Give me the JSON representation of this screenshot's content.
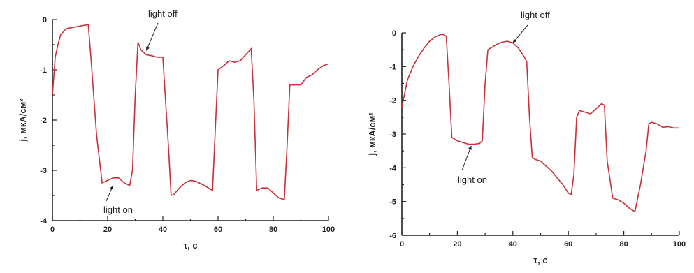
{
  "chart_data": [
    {
      "type": "line",
      "xlabel": "τ, c",
      "ylabel": "j, мкА/см²",
      "xlim": [
        0,
        100
      ],
      "ylim": [
        -4,
        0
      ],
      "xticks": [
        "0",
        "20",
        "40",
        "60",
        "80",
        "100"
      ],
      "yticks": [
        "0",
        "-1",
        "-2",
        "-3",
        "-4"
      ],
      "grid": false,
      "series": [
        {
          "color": "#c8303a",
          "x": [
            0,
            1,
            2,
            3,
            5,
            8,
            11,
            13,
            14,
            16,
            18,
            20,
            22,
            24,
            26,
            28,
            29,
            30,
            31,
            32,
            34,
            36,
            38,
            40,
            42,
            43,
            44,
            46,
            48,
            50,
            52,
            55,
            58,
            59,
            60,
            62,
            64,
            66,
            68,
            70,
            72,
            73,
            74,
            76,
            78,
            80,
            82,
            84,
            85,
            86,
            88,
            90,
            92,
            94,
            96,
            98,
            100
          ],
          "y": [
            -1.5,
            -0.75,
            -0.5,
            -0.3,
            -0.18,
            -0.15,
            -0.12,
            -0.1,
            -0.8,
            -2.3,
            -3.25,
            -3.2,
            -3.15,
            -3.15,
            -3.25,
            -3.3,
            -3.0,
            -1.5,
            -0.45,
            -0.6,
            -0.7,
            -0.72,
            -0.75,
            -0.75,
            -2.5,
            -3.5,
            -3.48,
            -3.35,
            -3.25,
            -3.2,
            -3.22,
            -3.3,
            -3.4,
            -2.2,
            -1.0,
            -0.92,
            -0.82,
            -0.85,
            -0.82,
            -0.7,
            -0.58,
            -1.6,
            -3.4,
            -3.35,
            -3.35,
            -3.45,
            -3.55,
            -3.58,
            -2.5,
            -1.3,
            -1.3,
            -1.3,
            -1.15,
            -1.1,
            -1.0,
            -0.92,
            -0.88
          ]
        }
      ],
      "annotations": [
        {
          "text": "light off",
          "x": 34,
          "y": -0.62
        },
        {
          "text": "light on",
          "x": 22,
          "y": -3.3
        }
      ]
    },
    {
      "type": "line",
      "xlabel": "τ, c",
      "ylabel": "j, мкА/см²",
      "xlim": [
        0,
        100
      ],
      "ylim": [
        -6,
        0
      ],
      "xticks": [
        "0",
        "20",
        "40",
        "60",
        "80",
        "100"
      ],
      "yticks": [
        "0",
        "-1",
        "-2",
        "-3",
        "-4",
        "-5",
        "-6"
      ],
      "grid": false,
      "series": [
        {
          "color": "#c8303a",
          "x": [
            0,
            2,
            4,
            6,
            8,
            10,
            12,
            14,
            15,
            16,
            17,
            18,
            20,
            22,
            24,
            26,
            28,
            29,
            30,
            31,
            32,
            34,
            36,
            38,
            40,
            42,
            44,
            45,
            46,
            47,
            48,
            50,
            52,
            54,
            56,
            58,
            60,
            61,
            62,
            63,
            64,
            66,
            68,
            70,
            72,
            73,
            74,
            76,
            78,
            80,
            82,
            84,
            86,
            88,
            89,
            90,
            92,
            94,
            96,
            98,
            100
          ],
          "y": [
            -2.2,
            -1.4,
            -1.0,
            -0.7,
            -0.45,
            -0.25,
            -0.12,
            -0.05,
            -0.05,
            -0.1,
            -1.5,
            -3.1,
            -3.2,
            -3.25,
            -3.3,
            -3.3,
            -3.28,
            -3.2,
            -1.5,
            -0.5,
            -0.45,
            -0.35,
            -0.28,
            -0.25,
            -0.3,
            -0.45,
            -0.7,
            -0.85,
            -2.5,
            -3.7,
            -3.75,
            -3.8,
            -3.95,
            -4.1,
            -4.3,
            -4.5,
            -4.75,
            -4.8,
            -4.2,
            -2.5,
            -2.3,
            -2.35,
            -2.4,
            -2.25,
            -2.1,
            -2.15,
            -3.8,
            -4.9,
            -4.95,
            -5.05,
            -5.2,
            -5.3,
            -4.5,
            -3.5,
            -2.7,
            -2.65,
            -2.7,
            -2.8,
            -2.78,
            -2.82,
            -2.82
          ]
        }
      ],
      "annotations": [
        {
          "text": "light off",
          "x": 40,
          "y": -0.3
        },
        {
          "text": "light on",
          "x": 25,
          "y": -3.35
        }
      ]
    }
  ]
}
